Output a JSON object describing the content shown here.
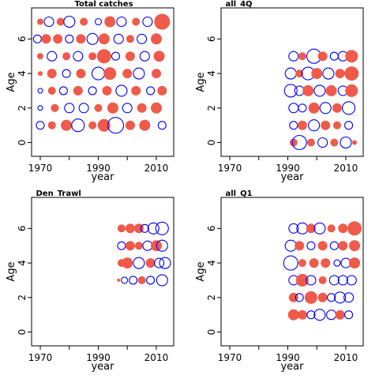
{
  "chart_data": [
    {
      "type": "scatter",
      "title": "Total catches",
      "xlabel": "year",
      "ylabel": "Age",
      "xlim": [
        1967,
        2016
      ],
      "ylim": [
        -0.8,
        7.8
      ],
      "xticks": [
        1970,
        1980,
        1990,
        2000,
        2010
      ],
      "xtick_labels": [
        "1970",
        "",
        "1990",
        "",
        "2010"
      ],
      "yticks": [
        0,
        2,
        4,
        6
      ],
      "marker_colors": {
        "positive": "#f05a4a",
        "negative": "#0000ff"
      },
      "bubbles": [
        {
          "x": 1970,
          "y": 7,
          "r": 4,
          "s": "p"
        },
        {
          "x": 1973,
          "y": 7,
          "r": 6,
          "s": "n"
        },
        {
          "x": 1977,
          "y": 7,
          "r": 5,
          "s": "p"
        },
        {
          "x": 1980,
          "y": 7,
          "r": 7,
          "s": "n"
        },
        {
          "x": 1985,
          "y": 7,
          "r": 5,
          "s": "p"
        },
        {
          "x": 1990,
          "y": 7,
          "r": 4,
          "s": "n"
        },
        {
          "x": 1994,
          "y": 7,
          "r": 7,
          "s": "p"
        },
        {
          "x": 1998,
          "y": 7,
          "r": 6,
          "s": "n"
        },
        {
          "x": 2003,
          "y": 7,
          "r": 5,
          "s": "p"
        },
        {
          "x": 2007,
          "y": 7,
          "r": 6,
          "s": "n"
        },
        {
          "x": 2012,
          "y": 7,
          "r": 10,
          "s": "p"
        },
        {
          "x": 1969,
          "y": 6,
          "r": 5,
          "s": "n"
        },
        {
          "x": 1972,
          "y": 6,
          "r": 6,
          "s": "p"
        },
        {
          "x": 1976,
          "y": 6,
          "r": 6,
          "s": "p"
        },
        {
          "x": 1980,
          "y": 6,
          "r": 5,
          "s": "n"
        },
        {
          "x": 1984,
          "y": 6,
          "r": 6,
          "s": "p"
        },
        {
          "x": 1988,
          "y": 6,
          "r": 7,
          "s": "n"
        },
        {
          "x": 1992,
          "y": 6,
          "r": 7,
          "s": "p"
        },
        {
          "x": 1997,
          "y": 6,
          "r": 6,
          "s": "n"
        },
        {
          "x": 2001,
          "y": 6,
          "r": 5,
          "s": "p"
        },
        {
          "x": 2005,
          "y": 6,
          "r": 6,
          "s": "n"
        },
        {
          "x": 2010,
          "y": 6,
          "r": 7,
          "s": "p"
        },
        {
          "x": 1970,
          "y": 5,
          "r": 4,
          "s": "p"
        },
        {
          "x": 1974,
          "y": 5,
          "r": 6,
          "s": "n"
        },
        {
          "x": 1979,
          "y": 5,
          "r": 5,
          "s": "p"
        },
        {
          "x": 1983,
          "y": 5,
          "r": 6,
          "s": "n"
        },
        {
          "x": 1988,
          "y": 5,
          "r": 5,
          "s": "p"
        },
        {
          "x": 1992,
          "y": 5,
          "r": 9,
          "s": "p"
        },
        {
          "x": 1996,
          "y": 5,
          "r": 5,
          "s": "n"
        },
        {
          "x": 2001,
          "y": 5,
          "r": 6,
          "s": "p"
        },
        {
          "x": 2006,
          "y": 5,
          "r": 6,
          "s": "n"
        },
        {
          "x": 2011,
          "y": 5,
          "r": 7,
          "s": "p"
        },
        {
          "x": 1970,
          "y": 4,
          "r": 3,
          "s": "p"
        },
        {
          "x": 1974,
          "y": 4,
          "r": 6,
          "s": "p"
        },
        {
          "x": 1979,
          "y": 4,
          "r": 5,
          "s": "n"
        },
        {
          "x": 1984,
          "y": 4,
          "r": 6,
          "s": "p"
        },
        {
          "x": 1990,
          "y": 4,
          "r": 8,
          "s": "n"
        },
        {
          "x": 1994,
          "y": 4,
          "r": 8,
          "s": "p"
        },
        {
          "x": 2000,
          "y": 4,
          "r": 6,
          "s": "p"
        },
        {
          "x": 2004,
          "y": 4,
          "r": 7,
          "s": "n"
        },
        {
          "x": 2010,
          "y": 4,
          "r": 6,
          "s": "p"
        },
        {
          "x": 1970,
          "y": 3,
          "r": 3,
          "s": "n"
        },
        {
          "x": 1974,
          "y": 3,
          "r": 5,
          "s": "p"
        },
        {
          "x": 1978,
          "y": 3,
          "r": 5,
          "s": "n"
        },
        {
          "x": 1983,
          "y": 3,
          "r": 6,
          "s": "p"
        },
        {
          "x": 1988,
          "y": 3,
          "r": 5,
          "s": "n"
        },
        {
          "x": 1993,
          "y": 3,
          "r": 6,
          "s": "p"
        },
        {
          "x": 1998,
          "y": 3,
          "r": 7,
          "s": "n"
        },
        {
          "x": 2003,
          "y": 3,
          "r": 6,
          "s": "p"
        },
        {
          "x": 2008,
          "y": 3,
          "r": 5,
          "s": "n"
        },
        {
          "x": 2012,
          "y": 3,
          "r": 6,
          "s": "p"
        },
        {
          "x": 1970,
          "y": 2,
          "r": 3,
          "s": "n"
        },
        {
          "x": 1975,
          "y": 2,
          "r": 5,
          "s": "p"
        },
        {
          "x": 1980,
          "y": 2,
          "r": 6,
          "s": "n"
        },
        {
          "x": 1985,
          "y": 2,
          "r": 6,
          "s": "n"
        },
        {
          "x": 1990,
          "y": 2,
          "r": 5,
          "s": "p"
        },
        {
          "x": 1995,
          "y": 2,
          "r": 7,
          "s": "p"
        },
        {
          "x": 2000,
          "y": 2,
          "r": 6,
          "s": "n"
        },
        {
          "x": 2005,
          "y": 2,
          "r": 6,
          "s": "p"
        },
        {
          "x": 2010,
          "y": 2,
          "r": 7,
          "s": "p"
        },
        {
          "x": 1970,
          "y": 1,
          "r": 5,
          "s": "n"
        },
        {
          "x": 1974,
          "y": 1,
          "r": 5,
          "s": "p"
        },
        {
          "x": 1979,
          "y": 1,
          "r": 7,
          "s": "p"
        },
        {
          "x": 1983,
          "y": 1,
          "r": 8,
          "s": "n"
        },
        {
          "x": 1988,
          "y": 1,
          "r": 5,
          "s": "p"
        },
        {
          "x": 1992,
          "y": 1,
          "r": 8,
          "s": "p"
        },
        {
          "x": 1996,
          "y": 1,
          "r": 10,
          "s": "n"
        },
        {
          "x": 2001,
          "y": 1,
          "r": 6,
          "s": "p"
        },
        {
          "x": 2006,
          "y": 1,
          "r": 7,
          "s": "p"
        },
        {
          "x": 2012,
          "y": 1,
          "r": 5,
          "s": "n"
        }
      ]
    },
    {
      "type": "scatter",
      "title": "all_4Q",
      "xlabel": "year",
      "ylabel": "Age",
      "xlim": [
        1967,
        2016
      ],
      "ylim": [
        -0.8,
        7.8
      ],
      "xticks": [
        1970,
        1980,
        1990,
        2000,
        2010
      ],
      "xtick_labels": [
        "1970",
        "",
        "1990",
        "",
        "2010"
      ],
      "yticks": [
        0,
        2,
        4,
        6
      ],
      "bubbles": [
        {
          "x": 1992,
          "y": 5,
          "r": 6,
          "s": "n"
        },
        {
          "x": 1995,
          "y": 5,
          "r": 5,
          "s": "p"
        },
        {
          "x": 1999,
          "y": 5,
          "r": 9,
          "s": "n"
        },
        {
          "x": 2002,
          "y": 5,
          "r": 6,
          "s": "p"
        },
        {
          "x": 2006,
          "y": 5,
          "r": 5,
          "s": "n"
        },
        {
          "x": 2009,
          "y": 5,
          "r": 6,
          "s": "n"
        },
        {
          "x": 2012,
          "y": 5,
          "r": 8,
          "s": "p"
        },
        {
          "x": 1991,
          "y": 4,
          "r": 7,
          "s": "n"
        },
        {
          "x": 1994,
          "y": 4,
          "r": 5,
          "s": "p"
        },
        {
          "x": 1997,
          "y": 4,
          "r": 8,
          "s": "n"
        },
        {
          "x": 2000,
          "y": 4,
          "r": 7,
          "s": "p"
        },
        {
          "x": 2004,
          "y": 4,
          "r": 7,
          "s": "n"
        },
        {
          "x": 2008,
          "y": 4,
          "r": 6,
          "s": "p"
        },
        {
          "x": 2012,
          "y": 4,
          "r": 9,
          "s": "p"
        },
        {
          "x": 1991,
          "y": 3,
          "r": 8,
          "s": "n"
        },
        {
          "x": 1994,
          "y": 3,
          "r": 6,
          "s": "n"
        },
        {
          "x": 1997,
          "y": 3,
          "r": 7,
          "s": "p"
        },
        {
          "x": 2001,
          "y": 3,
          "r": 7,
          "s": "n"
        },
        {
          "x": 2005,
          "y": 3,
          "r": 7,
          "s": "p"
        },
        {
          "x": 2009,
          "y": 3,
          "r": 6,
          "s": "n"
        },
        {
          "x": 2012,
          "y": 3,
          "r": 8,
          "s": "p"
        },
        {
          "x": 1992,
          "y": 2,
          "r": 6,
          "s": "n"
        },
        {
          "x": 1995,
          "y": 2,
          "r": 5,
          "s": "n"
        },
        {
          "x": 1999,
          "y": 2,
          "r": 7,
          "s": "p"
        },
        {
          "x": 2003,
          "y": 2,
          "r": 7,
          "s": "n"
        },
        {
          "x": 2007,
          "y": 2,
          "r": 6,
          "s": "p"
        },
        {
          "x": 2011,
          "y": 2,
          "r": 8,
          "s": "n"
        },
        {
          "x": 1992,
          "y": 1,
          "r": 5,
          "s": "n"
        },
        {
          "x": 1995,
          "y": 1,
          "r": 6,
          "s": "p"
        },
        {
          "x": 1999,
          "y": 1,
          "r": 7,
          "s": "n"
        },
        {
          "x": 2003,
          "y": 1,
          "r": 6,
          "s": "p"
        },
        {
          "x": 2007,
          "y": 1,
          "r": 5,
          "s": "p"
        },
        {
          "x": 2011,
          "y": 1,
          "r": 5,
          "s": "n"
        },
        {
          "x": 1992,
          "y": 0,
          "r": 5,
          "s": "p"
        },
        {
          "x": 1994,
          "y": 0,
          "r": 9,
          "s": "n"
        },
        {
          "x": 1998,
          "y": 0,
          "r": 5,
          "s": "p"
        },
        {
          "x": 2002,
          "y": 0,
          "r": 6,
          "s": "n"
        },
        {
          "x": 2006,
          "y": 0,
          "r": 5,
          "s": "p"
        },
        {
          "x": 2010,
          "y": 0,
          "r": 7,
          "s": "n"
        },
        {
          "x": 2013,
          "y": 0,
          "r": 3,
          "s": "p"
        }
      ]
    },
    {
      "type": "scatter",
      "title": "Den_Trawl",
      "xlabel": "year",
      "ylabel": "Age",
      "xlim": [
        1967,
        2016
      ],
      "ylim": [
        -0.8,
        7.8
      ],
      "xticks": [
        1970,
        1980,
        1990,
        2000,
        2010
      ],
      "xtick_labels": [
        "1970",
        "",
        "1990",
        "",
        "2010"
      ],
      "yticks": [
        0,
        2,
        4,
        6
      ],
      "bubbles": [
        {
          "x": 1998,
          "y": 6,
          "r": 5,
          "s": "p"
        },
        {
          "x": 2001,
          "y": 6,
          "r": 6,
          "s": "p"
        },
        {
          "x": 2004,
          "y": 6,
          "r": 6,
          "s": "p"
        },
        {
          "x": 2006,
          "y": 6,
          "r": 5,
          "s": "n"
        },
        {
          "x": 2009,
          "y": 6,
          "r": 7,
          "s": "n"
        },
        {
          "x": 2012,
          "y": 6,
          "r": 8,
          "s": "n"
        },
        {
          "x": 1998,
          "y": 5,
          "r": 5,
          "s": "n"
        },
        {
          "x": 2001,
          "y": 5,
          "r": 6,
          "s": "p"
        },
        {
          "x": 2004,
          "y": 5,
          "r": 5,
          "s": "p"
        },
        {
          "x": 2007,
          "y": 5,
          "r": 6,
          "s": "n"
        },
        {
          "x": 2010,
          "y": 5,
          "r": 7,
          "s": "p"
        },
        {
          "x": 2012,
          "y": 5,
          "r": 7,
          "s": "n"
        },
        {
          "x": 1998,
          "y": 4,
          "r": 5,
          "s": "p"
        },
        {
          "x": 2000,
          "y": 4,
          "r": 7,
          "s": "p"
        },
        {
          "x": 2004,
          "y": 4,
          "r": 7,
          "s": "n"
        },
        {
          "x": 2008,
          "y": 4,
          "r": 6,
          "s": "p"
        },
        {
          "x": 2011,
          "y": 4,
          "r": 6,
          "s": "n"
        },
        {
          "x": 2013,
          "y": 4,
          "r": 7,
          "s": "n"
        },
        {
          "x": 1997,
          "y": 3,
          "r": 2,
          "s": "p"
        },
        {
          "x": 1999,
          "y": 3,
          "r": 4,
          "s": "n"
        },
        {
          "x": 2002,
          "y": 3,
          "r": 5,
          "s": "n"
        },
        {
          "x": 2005,
          "y": 3,
          "r": 5,
          "s": "p"
        },
        {
          "x": 2008,
          "y": 3,
          "r": 5,
          "s": "n"
        },
        {
          "x": 2012,
          "y": 3,
          "r": 7,
          "s": "n"
        }
      ]
    },
    {
      "type": "scatter",
      "title": "all_Q1",
      "xlabel": "year",
      "ylabel": "Age",
      "xlim": [
        1967,
        2016
      ],
      "ylim": [
        -0.8,
        7.8
      ],
      "xticks": [
        1970,
        1980,
        1990,
        2000,
        2010
      ],
      "xtick_labels": [
        "1970",
        "",
        "1990",
        "",
        "2010"
      ],
      "yticks": [
        0,
        2,
        4,
        6
      ],
      "bubbles": [
        {
          "x": 1992,
          "y": 6,
          "r": 6,
          "s": "n"
        },
        {
          "x": 1995,
          "y": 6,
          "r": 7,
          "s": "n"
        },
        {
          "x": 1998,
          "y": 6,
          "r": 6,
          "s": "p"
        },
        {
          "x": 2001,
          "y": 6,
          "r": 7,
          "s": "n"
        },
        {
          "x": 2005,
          "y": 6,
          "r": 5,
          "s": "p"
        },
        {
          "x": 2009,
          "y": 6,
          "r": 6,
          "s": "p"
        },
        {
          "x": 2013,
          "y": 6,
          "r": 9,
          "s": "p"
        },
        {
          "x": 1991,
          "y": 5,
          "r": 7,
          "s": "n"
        },
        {
          "x": 1994,
          "y": 5,
          "r": 6,
          "s": "p"
        },
        {
          "x": 1998,
          "y": 5,
          "r": 5,
          "s": "n"
        },
        {
          "x": 2002,
          "y": 5,
          "r": 6,
          "s": "p"
        },
        {
          "x": 2006,
          "y": 5,
          "r": 5,
          "s": "n"
        },
        {
          "x": 2009,
          "y": 5,
          "r": 6,
          "s": "p"
        },
        {
          "x": 2013,
          "y": 5,
          "r": 7,
          "s": "p"
        },
        {
          "x": 1991,
          "y": 4,
          "r": 9,
          "s": "n"
        },
        {
          "x": 1995,
          "y": 4,
          "r": 5,
          "s": "p"
        },
        {
          "x": 1999,
          "y": 4,
          "r": 6,
          "s": "p"
        },
        {
          "x": 2003,
          "y": 4,
          "r": 6,
          "s": "p"
        },
        {
          "x": 2007,
          "y": 4,
          "r": 4,
          "s": "n"
        },
        {
          "x": 2010,
          "y": 4,
          "r": 6,
          "s": "n"
        },
        {
          "x": 2013,
          "y": 4,
          "r": 7,
          "s": "p"
        },
        {
          "x": 1992,
          "y": 3,
          "r": 6,
          "s": "n"
        },
        {
          "x": 1995,
          "y": 3,
          "r": 8,
          "s": "p"
        },
        {
          "x": 1998,
          "y": 3,
          "r": 6,
          "s": "n"
        },
        {
          "x": 2002,
          "y": 3,
          "r": 5,
          "s": "p"
        },
        {
          "x": 2006,
          "y": 3,
          "r": 6,
          "s": "n"
        },
        {
          "x": 2009,
          "y": 3,
          "r": 6,
          "s": "n"
        },
        {
          "x": 2012,
          "y": 3,
          "r": 6,
          "s": "n"
        },
        {
          "x": 1992,
          "y": 2,
          "r": 6,
          "s": "p"
        },
        {
          "x": 1994,
          "y": 2,
          "r": 5,
          "s": "n"
        },
        {
          "x": 1998,
          "y": 2,
          "r": 8,
          "s": "p"
        },
        {
          "x": 2002,
          "y": 2,
          "r": 6,
          "s": "p"
        },
        {
          "x": 2005,
          "y": 2,
          "r": 5,
          "s": "n"
        },
        {
          "x": 2008,
          "y": 2,
          "r": 7,
          "s": "n"
        },
        {
          "x": 2011,
          "y": 2,
          "r": 6,
          "s": "n"
        },
        {
          "x": 1992,
          "y": 1,
          "r": 7,
          "s": "p"
        },
        {
          "x": 1995,
          "y": 1,
          "r": 6,
          "s": "p"
        },
        {
          "x": 1998,
          "y": 1,
          "r": 5,
          "s": "n"
        },
        {
          "x": 2001,
          "y": 1,
          "r": 7,
          "s": "n"
        },
        {
          "x": 2005,
          "y": 1,
          "r": 6,
          "s": "n"
        },
        {
          "x": 2008,
          "y": 1,
          "r": 6,
          "s": "p"
        },
        {
          "x": 2011,
          "y": 1,
          "r": 5,
          "s": "n"
        }
      ]
    }
  ]
}
